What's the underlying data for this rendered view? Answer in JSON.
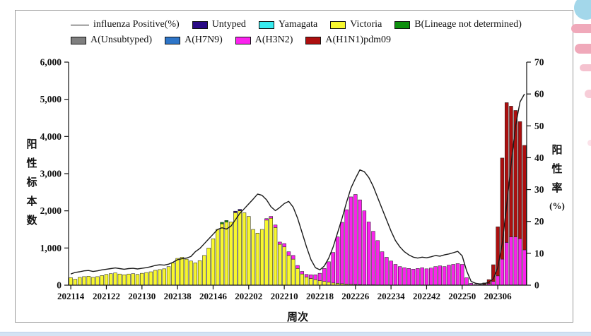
{
  "legend": {
    "items": [
      {
        "row": 1,
        "type": "line",
        "label": "influenza Positive(%)",
        "color": "#1a1a1a"
      },
      {
        "row": 1,
        "type": "swatch",
        "label": "Untyped",
        "color": "#2a0a85"
      },
      {
        "row": 1,
        "type": "swatch",
        "label": "Yamagata",
        "color": "#38ecf0"
      },
      {
        "row": 1,
        "type": "swatch",
        "label": "Victoria",
        "color": "#f8f82e"
      },
      {
        "row": 1,
        "type": "swatch",
        "label": "B(Lineage not determined)",
        "color": "#0e8f0e"
      },
      {
        "row": 2,
        "type": "swatch",
        "label": "A(Unsubtyped)",
        "color": "#7f7f7f"
      },
      {
        "row": 2,
        "type": "swatch",
        "label": "A(H7N9)",
        "color": "#2e75c8"
      },
      {
        "row": 2,
        "type": "swatch",
        "label": "A(H3N2)",
        "color": "#fb22ee"
      },
      {
        "row": 2,
        "type": "swatch",
        "label": "A(H1N1)pdm09",
        "color": "#ad0f0f"
      }
    ]
  },
  "axes": {
    "left": {
      "label": "阳性标本数",
      "ticks": [
        {
          "value": 0,
          "label": "0"
        },
        {
          "value": 1000,
          "label": "1,000"
        },
        {
          "value": 2000,
          "label": "2,000"
        },
        {
          "value": 3000,
          "label": "3,000"
        },
        {
          "value": 4000,
          "label": "4,000"
        },
        {
          "value": 5000,
          "label": "5,000"
        },
        {
          "value": 6000,
          "label": "6,000"
        }
      ]
    },
    "right": {
      "label": "阳性率",
      "unit": "(%)",
      "ticks": [
        {
          "value": 0,
          "label": "0"
        },
        {
          "value": 10,
          "label": "10"
        },
        {
          "value": 20,
          "label": "20"
        },
        {
          "value": 30,
          "label": "30"
        },
        {
          "value": 40,
          "label": "40"
        },
        {
          "value": 50,
          "label": "50"
        },
        {
          "value": 60,
          "label": "60"
        },
        {
          "value": 70,
          "label": "70"
        }
      ]
    },
    "x": {
      "label": "周次",
      "ticks": [
        {
          "index": 0,
          "label": "202114"
        },
        {
          "index": 8,
          "label": "202122"
        },
        {
          "index": 16,
          "label": "202130"
        },
        {
          "index": 24,
          "label": "202138"
        },
        {
          "index": 32,
          "label": "202146"
        },
        {
          "index": 40,
          "label": "202202"
        },
        {
          "index": 48,
          "label": "202210"
        },
        {
          "index": 56,
          "label": "202218"
        },
        {
          "index": 64,
          "label": "202226"
        },
        {
          "index": 72,
          "label": "202234"
        },
        {
          "index": 80,
          "label": "202242"
        },
        {
          "index": 88,
          "label": "202250"
        },
        {
          "index": 96,
          "label": "202306"
        }
      ]
    }
  },
  "chart_data": {
    "type": "bar",
    "subtype": "stacked-bars-with-line-overlay",
    "ylim_left": [
      0,
      6000
    ],
    "ylim_right": [
      0,
      70
    ],
    "legend_series_without_visible_bars": [
      "Yamagata",
      "A(H7N9)",
      "A(Unsubtyped)"
    ],
    "x": [
      "202114",
      "202115",
      "202116",
      "202117",
      "202118",
      "202119",
      "202120",
      "202121",
      "202122",
      "202123",
      "202124",
      "202125",
      "202126",
      "202127",
      "202128",
      "202129",
      "202130",
      "202131",
      "202132",
      "202133",
      "202134",
      "202135",
      "202136",
      "202137",
      "202138",
      "202139",
      "202140",
      "202141",
      "202142",
      "202143",
      "202144",
      "202145",
      "202146",
      "202147",
      "202148",
      "202149",
      "202150",
      "202151",
      "202152",
      "202201",
      "202202",
      "202203",
      "202204",
      "202205",
      "202206",
      "202207",
      "202208",
      "202209",
      "202210",
      "202211",
      "202212",
      "202213",
      "202214",
      "202215",
      "202216",
      "202217",
      "202218",
      "202219",
      "202220",
      "202221",
      "202222",
      "202223",
      "202224",
      "202225",
      "202226",
      "202227",
      "202228",
      "202229",
      "202230",
      "202231",
      "202232",
      "202233",
      "202234",
      "202235",
      "202236",
      "202237",
      "202238",
      "202239",
      "202240",
      "202241",
      "202242",
      "202243",
      "202244",
      "202245",
      "202246",
      "202247",
      "202248",
      "202249",
      "202250",
      "202251",
      "202252",
      "202301",
      "202302",
      "202303",
      "202304",
      "202305",
      "202306",
      "202307",
      "202308",
      "202309",
      "202310",
      "202311",
      "202312"
    ],
    "series": [
      {
        "name": "Victoria",
        "color": "#f8f82e",
        "values": [
          200,
          160,
          210,
          230,
          240,
          210,
          230,
          260,
          290,
          310,
          330,
          300,
          280,
          300,
          310,
          290,
          320,
          340,
          360,
          400,
          420,
          440,
          500,
          600,
          720,
          750,
          700,
          650,
          600,
          660,
          800,
          1000,
          1250,
          1500,
          1650,
          1700,
          1700,
          1950,
          2000,
          1950,
          1850,
          1500,
          1400,
          1500,
          1750,
          1800,
          1550,
          1100,
          1030,
          800,
          700,
          450,
          300,
          220,
          180,
          150,
          120,
          100,
          80,
          60,
          50,
          40,
          30,
          25,
          20,
          15,
          10,
          10,
          10,
          0,
          0,
          0,
          0,
          0,
          0,
          0,
          0,
          0,
          0,
          0,
          0,
          0,
          0,
          0,
          0,
          0,
          0,
          0,
          0,
          0,
          0,
          0,
          0,
          0,
          0,
          0,
          0,
          0,
          0,
          0,
          0,
          0,
          0
        ]
      },
      {
        "name": "B(Lineage not determined)",
        "color": "#0e8f0e",
        "values": [
          0,
          0,
          0,
          0,
          0,
          0,
          0,
          0,
          0,
          0,
          0,
          0,
          0,
          0,
          0,
          0,
          0,
          0,
          0,
          0,
          0,
          0,
          0,
          0,
          0,
          0,
          0,
          0,
          0,
          0,
          0,
          0,
          0,
          0,
          40,
          40,
          0,
          0,
          0,
          0,
          0,
          0,
          0,
          0,
          0,
          0,
          0,
          0,
          0,
          0,
          0,
          0,
          0,
          0,
          0,
          0,
          0,
          0,
          0,
          0,
          0,
          0,
          0,
          0,
          0,
          0,
          0,
          0,
          0,
          0,
          0,
          0,
          0,
          0,
          0,
          0,
          0,
          0,
          0,
          0,
          0,
          0,
          0,
          0,
          0,
          0,
          0,
          0,
          0,
          0,
          0,
          0,
          0,
          0,
          0,
          0,
          0,
          0,
          0,
          0,
          0,
          0,
          0
        ]
      },
      {
        "name": "Untyped",
        "color": "#2a0a85",
        "values": [
          0,
          0,
          0,
          0,
          0,
          0,
          0,
          0,
          0,
          0,
          0,
          0,
          0,
          0,
          0,
          0,
          0,
          0,
          0,
          0,
          0,
          0,
          0,
          0,
          0,
          0,
          0,
          0,
          0,
          0,
          0,
          0,
          0,
          0,
          0,
          0,
          0,
          40,
          40,
          0,
          0,
          0,
          0,
          0,
          0,
          0,
          0,
          0,
          0,
          0,
          0,
          0,
          0,
          0,
          0,
          0,
          0,
          0,
          0,
          0,
          0,
          0,
          0,
          0,
          0,
          0,
          0,
          0,
          0,
          0,
          0,
          0,
          0,
          0,
          0,
          0,
          0,
          0,
          0,
          0,
          0,
          0,
          0,
          0,
          0,
          0,
          0,
          0,
          0,
          0,
          0,
          0,
          0,
          0,
          0,
          0,
          0,
          0,
          0,
          0,
          0,
          0,
          0
        ]
      },
      {
        "name": "A(H3N2)",
        "color": "#fb22ee",
        "values": [
          0,
          0,
          0,
          0,
          0,
          0,
          0,
          0,
          0,
          0,
          0,
          0,
          0,
          0,
          0,
          0,
          0,
          0,
          0,
          0,
          0,
          0,
          0,
          0,
          0,
          0,
          0,
          0,
          0,
          0,
          0,
          0,
          0,
          0,
          0,
          0,
          0,
          0,
          0,
          0,
          0,
          0,
          0,
          0,
          40,
          50,
          70,
          60,
          90,
          100,
          100,
          80,
          70,
          70,
          100,
          130,
          200,
          350,
          550,
          820,
          1250,
          1650,
          2000,
          2350,
          2420,
          2280,
          1990,
          1690,
          1440,
          1200,
          900,
          750,
          650,
          560,
          500,
          470,
          450,
          430,
          450,
          470,
          440,
          460,
          500,
          520,
          500,
          540,
          560,
          580,
          560,
          200,
          50,
          20,
          15,
          20,
          40,
          100,
          250,
          700,
          1150,
          1300,
          1300,
          1250,
          950
        ]
      },
      {
        "name": "A(H1N1)pdm09",
        "color": "#ad0f0f",
        "values": [
          0,
          0,
          0,
          0,
          0,
          0,
          0,
          0,
          0,
          0,
          0,
          0,
          0,
          0,
          0,
          0,
          0,
          0,
          0,
          0,
          0,
          0,
          0,
          0,
          0,
          0,
          0,
          0,
          0,
          0,
          0,
          0,
          0,
          0,
          0,
          0,
          0,
          0,
          0,
          0,
          0,
          0,
          0,
          0,
          0,
          0,
          0,
          0,
          0,
          0,
          0,
          0,
          0,
          0,
          0,
          0,
          0,
          0,
          0,
          0,
          0,
          0,
          0,
          0,
          0,
          0,
          0,
          0,
          0,
          0,
          0,
          0,
          0,
          0,
          0,
          0,
          0,
          0,
          0,
          0,
          0,
          0,
          0,
          0,
          0,
          0,
          0,
          0,
          0,
          0,
          0,
          0,
          0,
          40,
          110,
          450,
          1320,
          2720,
          3760,
          3515,
          3400,
          3150,
          2810
        ]
      }
    ],
    "line": {
      "name": "influenza Positive(%)",
      "color": "#1a1a1a",
      "axis": "right",
      "values": [
        3.5,
        4.0,
        4.2,
        4.5,
        4.6,
        4.3,
        4.5,
        4.8,
        5.0,
        5.2,
        5.4,
        5.2,
        5.0,
        5.2,
        5.3,
        5.1,
        5.3,
        5.5,
        5.8,
        6.2,
        6.4,
        6.3,
        6.6,
        7.2,
        8.0,
        8.3,
        8.5,
        9.0,
        10.5,
        11.5,
        13.0,
        14.5,
        16.0,
        17.5,
        18.0,
        17.6,
        18.5,
        20.5,
        22.5,
        24.0,
        25.5,
        27.0,
        28.6,
        28.2,
        26.8,
        24.6,
        23.4,
        24.4,
        25.6,
        26.3,
        24.5,
        21.0,
        16.5,
        12.0,
        8.0,
        5.5,
        4.8,
        6.0,
        8.5,
        12.0,
        16.5,
        21.0,
        26.0,
        30.5,
        33.5,
        36.2,
        35.6,
        33.8,
        31.0,
        27.5,
        24.0,
        20.5,
        17.0,
        14.0,
        12.0,
        10.5,
        9.5,
        8.8,
        8.5,
        8.8,
        8.6,
        8.9,
        9.3,
        9.1,
        9.5,
        9.8,
        10.2,
        10.6,
        9.2,
        4.5,
        1.2,
        0.6,
        0.4,
        0.5,
        0.9,
        2.0,
        5.5,
        13.0,
        25.0,
        38.0,
        50.0,
        57.5,
        60.0
      ]
    }
  }
}
